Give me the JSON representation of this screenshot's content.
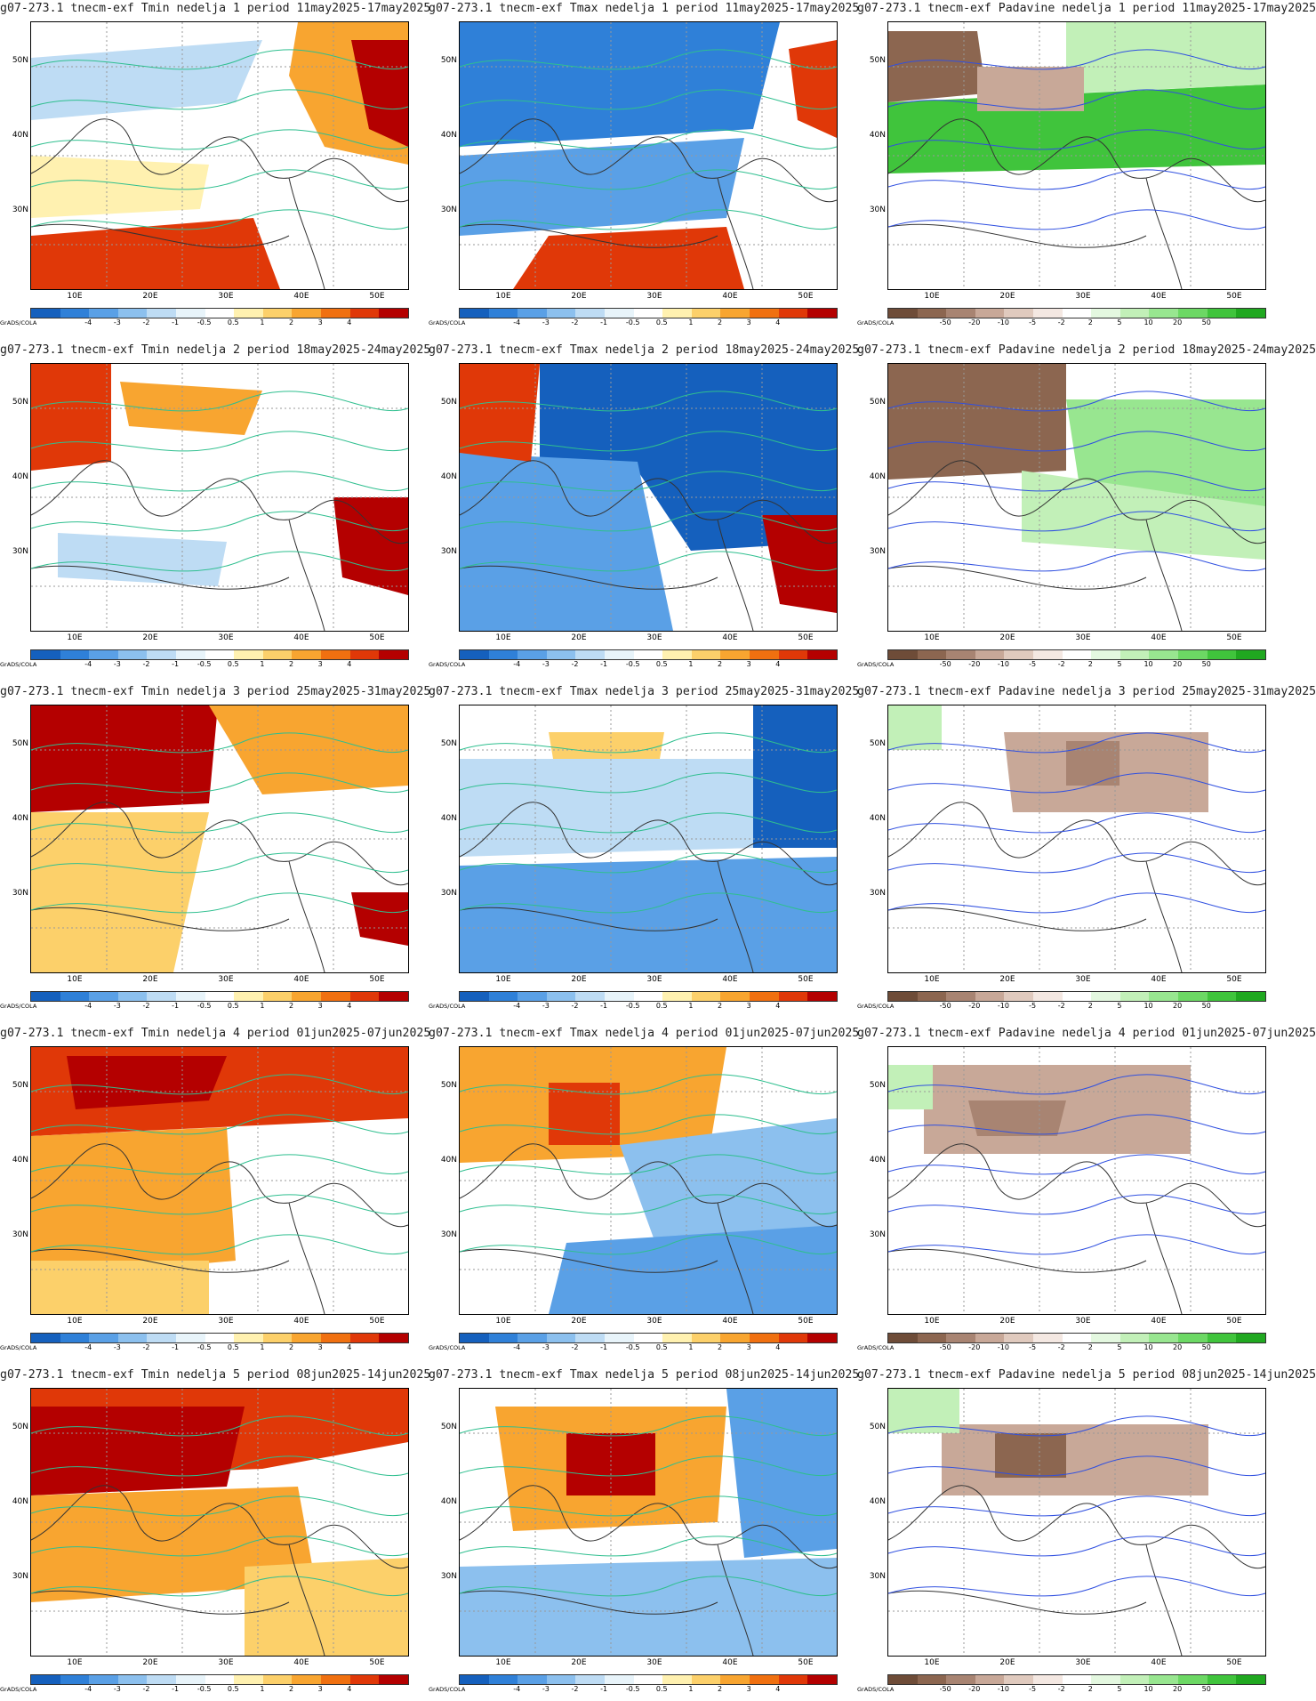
{
  "attribution": "GrADS/COLA",
  "lat_labels": [
    "50N",
    "40N",
    "30N"
  ],
  "lon_labels": [
    "10E",
    "20E",
    "30E",
    "40E",
    "50E"
  ],
  "temp_scale": {
    "ticks": [
      "-4",
      "-3",
      "-2",
      "-1",
      "-0.5",
      "0.5",
      "1",
      "2",
      "3",
      "4"
    ],
    "colors": [
      "#1560bd",
      "#2f80d8",
      "#5aa0e6",
      "#8cc0ee",
      "#bedcf4",
      "#e8f4fa",
      "#ffffff",
      "#fff1b0",
      "#fcd06a",
      "#f8a530",
      "#f07010",
      "#e03808",
      "#b40000"
    ]
  },
  "precip_scale": {
    "ticks": [
      "-50",
      "-20",
      "-10",
      "-5",
      "-2",
      "2",
      "5",
      "10",
      "20",
      "50"
    ],
    "colors": [
      "#6e4c38",
      "#8c6650",
      "#a88472",
      "#c8a898",
      "#e0cabe",
      "#f4e8e2",
      "#ffffff",
      "#e4f8e0",
      "#c2f0b8",
      "#98e690",
      "#6cd864",
      "#40c43c",
      "#20a820"
    ]
  },
  "panels": [
    {
      "title": "g07-273.1 tnecm-exf Tmin nedelja 1 period 11may2025-17may2025",
      "kind": "temp"
    },
    {
      "title": "g07-273.1 tnecm-exf Tmax nedelja 1 period 11may2025-17may2025",
      "kind": "temp"
    },
    {
      "title": "g07-273.1 tnecm-exf Padavine nedelja 1 period 11may2025-17may2025",
      "kind": "precip"
    },
    {
      "title": "g07-273.1 tnecm-exf Tmin nedelja 2 period 18may2025-24may2025",
      "kind": "temp"
    },
    {
      "title": "g07-273.1 tnecm-exf Tmax nedelja 2 period 18may2025-24may2025",
      "kind": "temp"
    },
    {
      "title": "g07-273.1 tnecm-exf Padavine nedelja 2 period 18may2025-24may2025",
      "kind": "precip"
    },
    {
      "title": "g07-273.1 tnecm-exf Tmin nedelja 3 period 25may2025-31may2025",
      "kind": "temp"
    },
    {
      "title": "g07-273.1 tnecm-exf Tmax nedelja 3 period 25may2025-31may2025",
      "kind": "temp"
    },
    {
      "title": "g07-273.1 tnecm-exf Padavine nedelja 3 period 25may2025-31may2025",
      "kind": "precip"
    },
    {
      "title": "g07-273.1 tnecm-exf Tmin nedelja 4 period 01jun2025-07jun2025",
      "kind": "temp"
    },
    {
      "title": "g07-273.1 tnecm-exf Tmax nedelja 4 period 01jun2025-07jun2025",
      "kind": "temp"
    },
    {
      "title": "g07-273.1 tnecm-exf Padavine nedelja 4 period 01jun2025-07jun2025",
      "kind": "precip"
    },
    {
      "title": "g07-273.1 tnecm-exf Tmin nedelja 5 period 08jun2025-14jun2025",
      "kind": "temp"
    },
    {
      "title": "g07-273.1 tnecm-exf Tmax nedelja 5 period 08jun2025-14jun2025",
      "kind": "temp"
    },
    {
      "title": "g07-273.1 tnecm-exf Padavine nedelja 5 period 08jun2025-14jun2025",
      "kind": "precip"
    }
  ]
}
